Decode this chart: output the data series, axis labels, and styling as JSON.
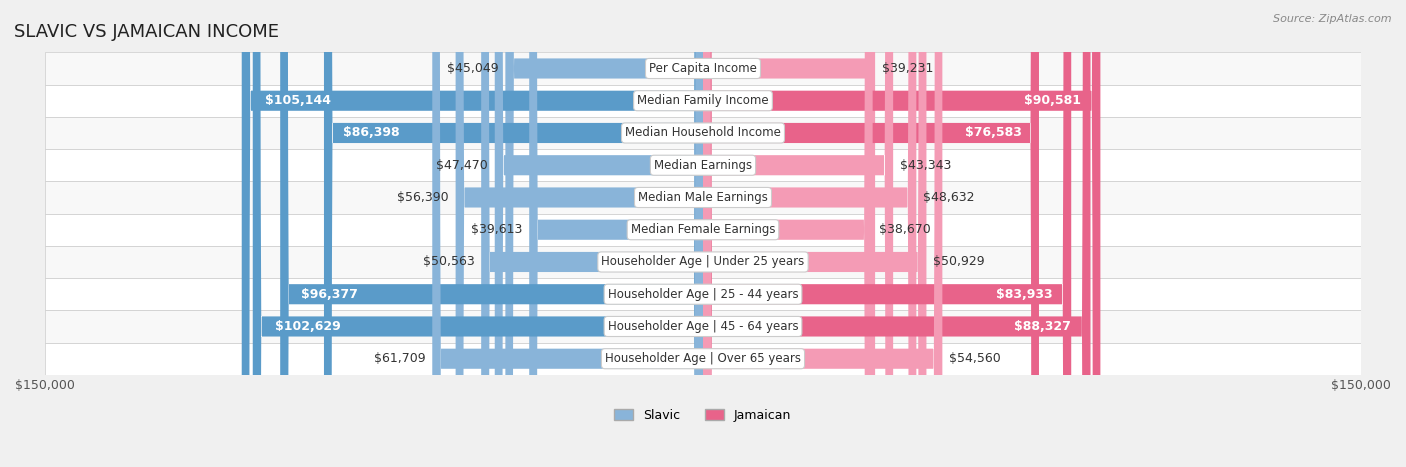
{
  "title": "SLAVIC VS JAMAICAN INCOME",
  "source": "Source: ZipAtlas.com",
  "categories": [
    "Per Capita Income",
    "Median Family Income",
    "Median Household Income",
    "Median Earnings",
    "Median Male Earnings",
    "Median Female Earnings",
    "Householder Age | Under 25 years",
    "Householder Age | 25 - 44 years",
    "Householder Age | 45 - 64 years",
    "Householder Age | Over 65 years"
  ],
  "slavic_values": [
    45049,
    105144,
    86398,
    47470,
    56390,
    39613,
    50563,
    96377,
    102629,
    61709
  ],
  "jamaican_values": [
    39231,
    90581,
    76583,
    43343,
    48632,
    38670,
    50929,
    83933,
    88327,
    54560
  ],
  "slavic_labels": [
    "$45,049",
    "$105,144",
    "$86,398",
    "$47,470",
    "$56,390",
    "$39,613",
    "$50,563",
    "$96,377",
    "$102,629",
    "$61,709"
  ],
  "jamaican_labels": [
    "$39,231",
    "$90,581",
    "$76,583",
    "$43,343",
    "$48,632",
    "$38,670",
    "$50,929",
    "$83,933",
    "$88,327",
    "$54,560"
  ],
  "max_value": 150000,
  "slavic_color": "#89b4d9",
  "slavic_color_dark": "#5a9bc9",
  "jamaican_color": "#f49bb5",
  "jamaican_color_dark": "#e8638a",
  "bg_color": "#f0f0f0",
  "row_bg": "#f8f8f8",
  "row_bg_alt": "#ffffff",
  "label_fontsize": 9,
  "title_fontsize": 13,
  "threshold_dark_label": 20000
}
